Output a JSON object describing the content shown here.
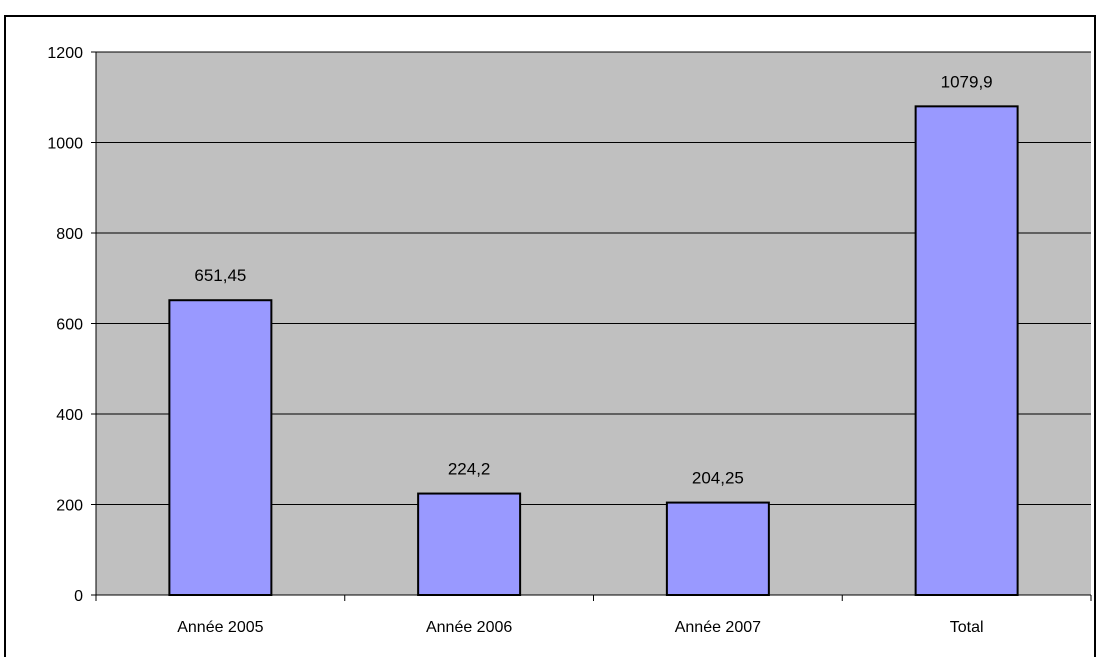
{
  "chart_data": {
    "type": "bar",
    "title": "",
    "xlabel": "",
    "ylabel": "",
    "categories": [
      "Année 2005",
      "Année 2006",
      "Année 2007",
      "Total"
    ],
    "values": [
      651.45,
      224.2,
      204.25,
      1079.9
    ],
    "data_labels": [
      "651,45",
      "224,2",
      "204,25",
      "1079,9"
    ],
    "ylim": [
      0,
      1200
    ],
    "yticks": [
      0,
      200,
      400,
      600,
      800,
      1000,
      1200
    ],
    "grid": true,
    "legend": "none",
    "colors": {
      "plot_background": "#c0c0c0",
      "bar_fill": "#9999ff",
      "bar_stroke": "#000000",
      "gridline": "#000000"
    }
  }
}
